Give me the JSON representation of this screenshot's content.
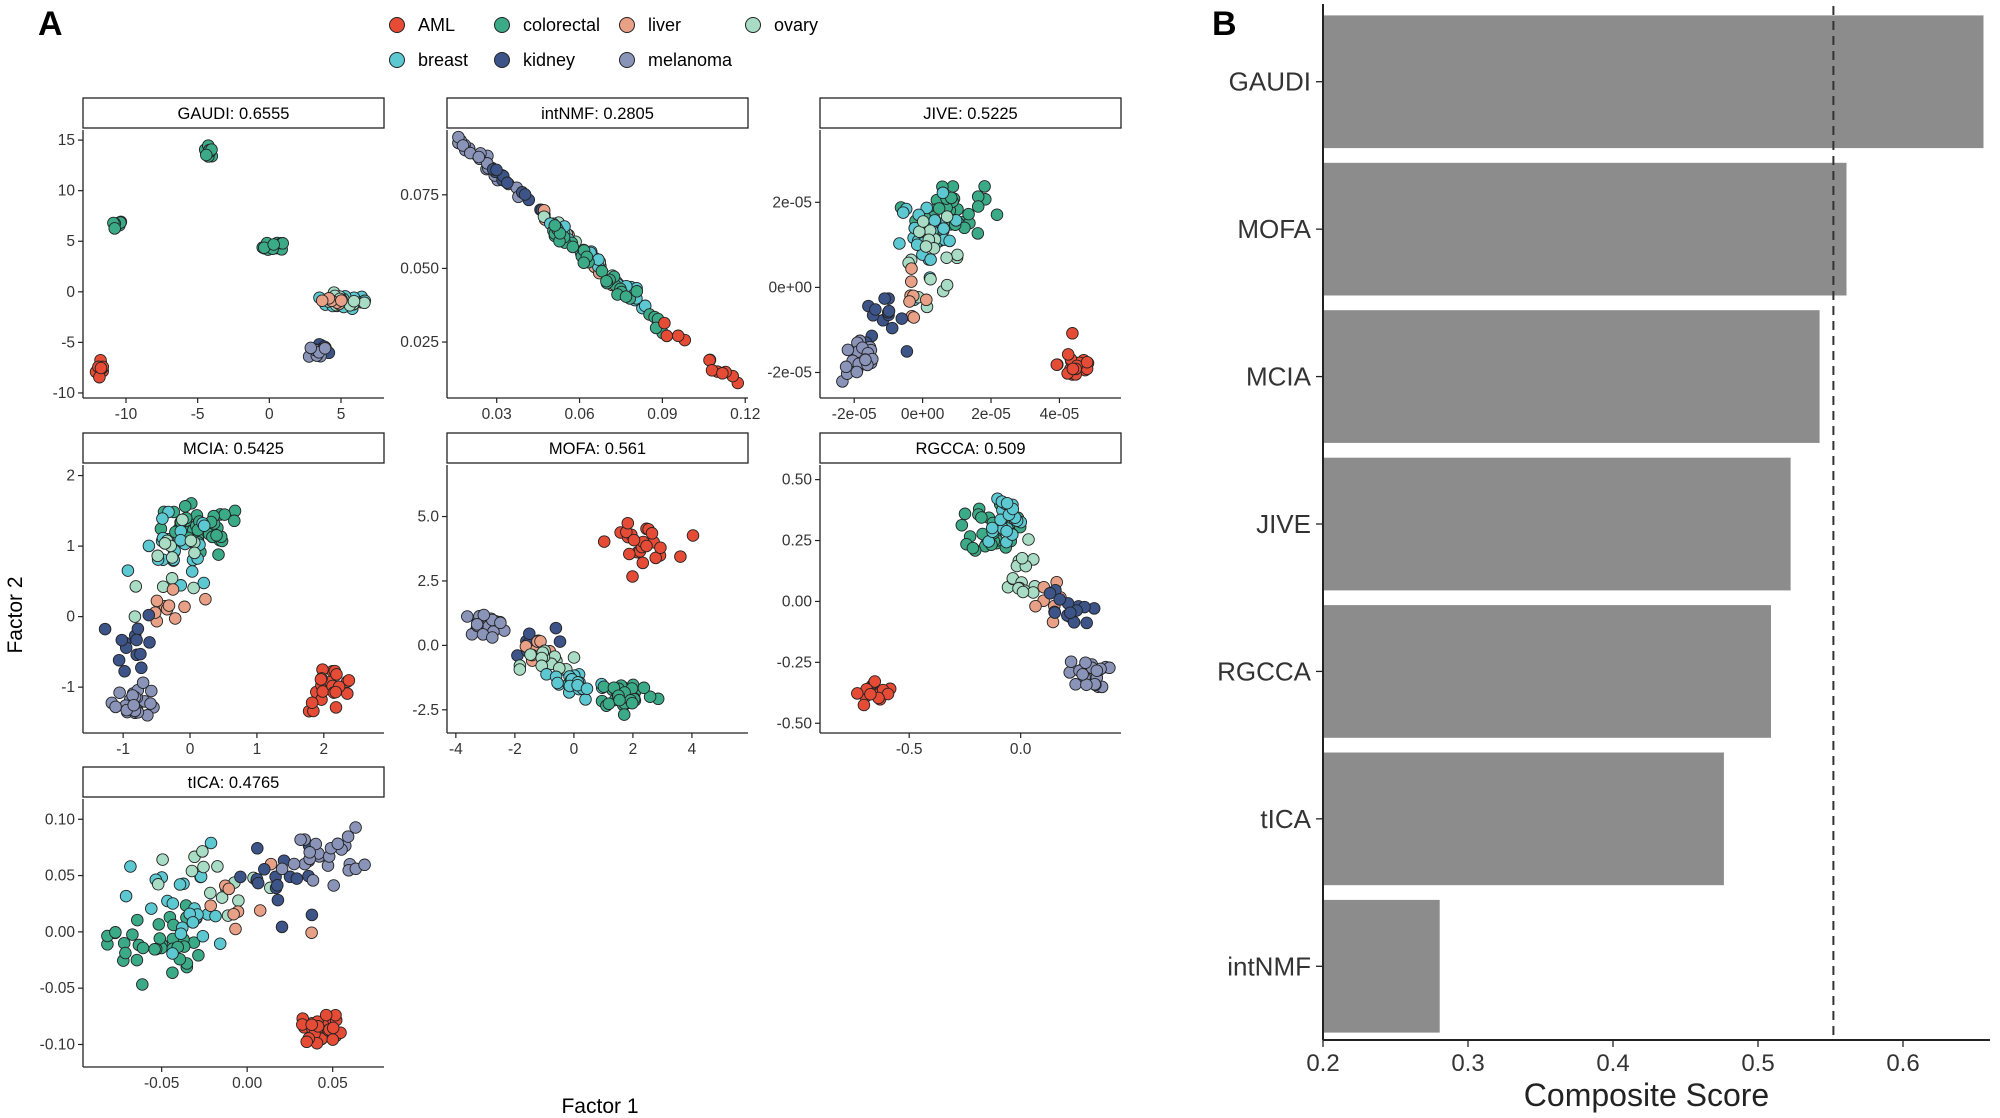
{
  "panel_a_letter": "A",
  "panel_b_letter": "B",
  "shared_xlabel": "Factor 1",
  "shared_ylabel": "Factor 2",
  "legend": [
    {
      "label": "AML",
      "color": "#E64B35"
    },
    {
      "label": "colorectal",
      "color": "#3BAA86"
    },
    {
      "label": "liver",
      "color": "#E8A086"
    },
    {
      "label": "ovary",
      "color": "#A8DCC4"
    },
    {
      "label": "breast",
      "color": "#5BC8D2"
    },
    {
      "label": "kidney",
      "color": "#3C5488"
    },
    {
      "label": "melanoma",
      "color": "#8A93B8"
    }
  ],
  "chart_data": [
    {
      "type": "scatter",
      "title": "GAUDI: 0.6555",
      "xticks": [
        "-10",
        "-5",
        "0",
        "5"
      ],
      "xtick_values": [
        -10,
        -5,
        0,
        5
      ],
      "yticks": [
        "-10",
        "-5",
        "0",
        "5",
        "10",
        "15"
      ],
      "ytick_values": [
        -10,
        -5,
        0,
        5,
        10,
        15
      ],
      "xlim": [
        -13,
        8
      ],
      "ylim": [
        -10.5,
        16
      ],
      "clusters": [
        {
          "group": "AML",
          "center": [
            -11.7,
            -7.6
          ],
          "spread": [
            0.35,
            1.1
          ],
          "n": 10
        },
        {
          "group": "colorectal",
          "center": [
            -10.7,
            6.7
          ],
          "spread": [
            0.5,
            0.3
          ],
          "n": 9
        },
        {
          "group": "colorectal",
          "center": [
            -4.2,
            13.9
          ],
          "spread": [
            0.3,
            0.5
          ],
          "n": 10
        },
        {
          "group": "colorectal",
          "center": [
            0.3,
            4.4
          ],
          "spread": [
            0.7,
            0.5
          ],
          "n": 16
        },
        {
          "group": "breast",
          "center": [
            5.2,
            -1.0
          ],
          "spread": [
            1.5,
            0.6
          ],
          "n": 26
        },
        {
          "group": "ovary",
          "center": [
            5.0,
            -0.9
          ],
          "spread": [
            1.4,
            0.6
          ],
          "n": 14
        },
        {
          "group": "liver",
          "center": [
            4.2,
            -1.1
          ],
          "spread": [
            1.0,
            0.5
          ],
          "n": 6
        },
        {
          "group": "kidney",
          "center": [
            3.8,
            -5.8
          ],
          "spread": [
            0.5,
            0.5
          ],
          "n": 12
        },
        {
          "group": "melanoma",
          "center": [
            3.4,
            -5.9
          ],
          "spread": [
            0.6,
            0.6
          ],
          "n": 10
        }
      ]
    },
    {
      "type": "scatter",
      "title": "intNMF: 0.2805",
      "xticks": [
        "0.03",
        "0.06",
        "0.09",
        "0.12"
      ],
      "xtick_values": [
        0.03,
        0.06,
        0.09,
        0.12
      ],
      "yticks": [
        "0.025",
        "0.050",
        "0.075"
      ],
      "ytick_values": [
        0.025,
        0.05,
        0.075
      ],
      "xlim": [
        0.012,
        0.121
      ],
      "ylim": [
        0.006,
        0.097
      ],
      "lines": [
        {
          "group": "melanoma",
          "from": [
            0.016,
            0.094
          ],
          "to": [
            0.04,
            0.074
          ],
          "n": 26,
          "spread": 0.0012
        },
        {
          "group": "kidney",
          "from": [
            0.025,
            0.086
          ],
          "to": [
            0.05,
            0.066
          ],
          "n": 12,
          "spread": 0.0012
        },
        {
          "group": "liver",
          "from": [
            0.035,
            0.079
          ],
          "to": [
            0.08,
            0.038
          ],
          "n": 10,
          "spread": 0.0012
        },
        {
          "group": "ovary",
          "from": [
            0.04,
            0.074
          ],
          "to": [
            0.075,
            0.045
          ],
          "n": 18,
          "spread": 0.0012
        },
        {
          "group": "breast",
          "from": [
            0.045,
            0.07
          ],
          "to": [
            0.085,
            0.036
          ],
          "n": 22,
          "spread": 0.0012
        },
        {
          "group": "colorectal",
          "from": [
            0.05,
            0.064
          ],
          "to": [
            0.092,
            0.028
          ],
          "n": 36,
          "spread": 0.0012
        },
        {
          "group": "AML",
          "from": [
            0.086,
            0.034
          ],
          "to": [
            0.118,
            0.011
          ],
          "n": 12,
          "spread": 0.0012
        }
      ]
    },
    {
      "type": "scatter",
      "title": "JIVE: 0.5225",
      "xticks": [
        "-2e-05",
        "0e+00",
        "2e-05",
        "4e-05"
      ],
      "xtick_values": [
        -2e-05,
        0,
        2e-05,
        4e-05
      ],
      "yticks": [
        "-2e-05",
        "0e+00",
        "2e-05"
      ],
      "ytick_values": [
        -2e-05,
        0,
        2e-05
      ],
      "xlim": [
        -3e-05,
        5.8e-05
      ],
      "ylim": [
        -2.6e-05,
        3.7e-05
      ],
      "clusters": [
        {
          "group": "colorectal",
          "center": [
            8e-06,
            1.8e-05
          ],
          "spread": [
            9e-06,
            6e-06
          ],
          "n": 40
        },
        {
          "group": "breast",
          "center": [
            2e-06,
            1.2e-05
          ],
          "spread": [
            8e-06,
            8e-06
          ],
          "n": 30
        },
        {
          "group": "ovary",
          "center": [
            3e-06,
            7e-06
          ],
          "spread": [
            8e-06,
            8e-06
          ],
          "n": 18
        },
        {
          "group": "liver",
          "center": [
            -4e-06,
            -2e-06
          ],
          "spread": [
            5e-06,
            5e-06
          ],
          "n": 8
        },
        {
          "group": "kidney",
          "center": [
            -1.2e-05,
            -8e-06
          ],
          "spread": [
            6e-06,
            5e-06
          ],
          "n": 14
        },
        {
          "group": "melanoma",
          "center": [
            -1.8e-05,
            -1.7e-05
          ],
          "spread": [
            5e-06,
            5e-06
          ],
          "n": 22
        },
        {
          "group": "AML",
          "center": [
            4.5e-05,
            -1.8e-05
          ],
          "spread": [
            5e-06,
            4e-06
          ],
          "n": 22
        }
      ]
    },
    {
      "type": "scatter",
      "title": "MCIA: 0.5425",
      "xticks": [
        "-1",
        "0",
        "1",
        "2"
      ],
      "xtick_values": [
        -1,
        0,
        1,
        2
      ],
      "yticks": [
        "-1",
        "0",
        "1",
        "2"
      ],
      "ytick_values": [
        -1,
        0,
        1,
        2
      ],
      "xlim": [
        -1.6,
        2.9
      ],
      "ylim": [
        -1.65,
        2.15
      ],
      "clusters": [
        {
          "group": "colorectal",
          "center": [
            0.1,
            1.2
          ],
          "spread": [
            0.65,
            0.35
          ],
          "n": 40
        },
        {
          "group": "breast",
          "center": [
            -0.2,
            0.9
          ],
          "spread": [
            0.5,
            0.5
          ],
          "n": 22
        },
        {
          "group": "ovary",
          "center": [
            -0.2,
            0.7
          ],
          "spread": [
            0.5,
            0.5
          ],
          "n": 14
        },
        {
          "group": "liver",
          "center": [
            -0.3,
            0.1
          ],
          "spread": [
            0.4,
            0.4
          ],
          "n": 10
        },
        {
          "group": "kidney",
          "center": [
            -0.8,
            -0.4
          ],
          "spread": [
            0.3,
            0.4
          ],
          "n": 14
        },
        {
          "group": "melanoma",
          "center": [
            -0.8,
            -1.2
          ],
          "spread": [
            0.3,
            0.2
          ],
          "n": 24
        },
        {
          "group": "AML",
          "center": [
            2.1,
            -1.0
          ],
          "spread": [
            0.35,
            0.3
          ],
          "n": 22
        }
      ]
    },
    {
      "type": "scatter",
      "title": "MOFA: 0.561",
      "xticks": [
        "-4",
        "-2",
        "0",
        "2",
        "4"
      ],
      "xtick_values": [
        -4,
        -2,
        0,
        2,
        4
      ],
      "yticks": [
        "-2.5",
        "0.0",
        "2.5",
        "5.0"
      ],
      "ytick_values": [
        -2.5,
        0,
        2.5,
        5
      ],
      "xlim": [
        -4.3,
        5.9
      ],
      "ylim": [
        -3.4,
        7.0
      ],
      "clusters": [
        {
          "group": "AML",
          "center": [
            2.3,
            4.0
          ],
          "spread": [
            1.0,
            0.6
          ],
          "n": 24
        },
        {
          "group": "melanoma",
          "center": [
            -3.0,
            0.8
          ],
          "spread": [
            0.7,
            0.4
          ],
          "n": 24
        },
        {
          "group": "kidney",
          "center": [
            -1.5,
            0.0
          ],
          "spread": [
            0.8,
            0.6
          ],
          "n": 14
        },
        {
          "group": "liver",
          "center": [
            -1.3,
            -0.3
          ],
          "spread": [
            0.6,
            0.5
          ],
          "n": 10
        },
        {
          "group": "ovary",
          "center": [
            -0.8,
            -0.8
          ],
          "spread": [
            0.9,
            0.7
          ],
          "n": 16
        },
        {
          "group": "breast",
          "center": [
            0.0,
            -1.5
          ],
          "spread": [
            1.0,
            0.6
          ],
          "n": 24
        },
        {
          "group": "colorectal",
          "center": [
            1.8,
            -1.9
          ],
          "spread": [
            0.9,
            0.5
          ],
          "n": 34
        }
      ]
    },
    {
      "type": "scatter",
      "title": "RGCCA: 0.509",
      "xticks": [
        "-0.5",
        "0.0"
      ],
      "xtick_values": [
        -0.5,
        0
      ],
      "yticks": [
        "-0.50",
        "-0.25",
        "0.00",
        "0.25",
        "0.50"
      ],
      "ytick_values": [
        -0.5,
        -0.25,
        0,
        0.25,
        0.5
      ],
      "xlim": [
        -0.9,
        0.45
      ],
      "ylim": [
        -0.54,
        0.56
      ],
      "clusters": [
        {
          "group": "AML",
          "center": [
            -0.65,
            -0.38
          ],
          "spread": [
            0.08,
            0.05
          ],
          "n": 22
        },
        {
          "group": "colorectal",
          "center": [
            -0.12,
            0.3
          ],
          "spread": [
            0.09,
            0.1
          ],
          "n": 36
        },
        {
          "group": "breast",
          "center": [
            -0.08,
            0.35
          ],
          "spread": [
            0.08,
            0.1
          ],
          "n": 22
        },
        {
          "group": "ovary",
          "center": [
            0.0,
            0.1
          ],
          "spread": [
            0.1,
            0.12
          ],
          "n": 16
        },
        {
          "group": "liver",
          "center": [
            0.1,
            0.0
          ],
          "spread": [
            0.07,
            0.08
          ],
          "n": 8
        },
        {
          "group": "kidney",
          "center": [
            0.2,
            -0.05
          ],
          "spread": [
            0.1,
            0.1
          ],
          "n": 14
        },
        {
          "group": "melanoma",
          "center": [
            0.3,
            -0.3
          ],
          "spread": [
            0.08,
            0.05
          ],
          "n": 26
        }
      ]
    },
    {
      "type": "scatter",
      "title": "tICA: 0.4765",
      "xticks": [
        "-0.05",
        "0.00",
        "0.05"
      ],
      "xtick_values": [
        -0.05,
        0,
        0.05
      ],
      "yticks": [
        "-0.10",
        "-0.05",
        "0.00",
        "0.05",
        "0.10"
      ],
      "ytick_values": [
        -0.1,
        -0.05,
        0,
        0.05,
        0.1
      ],
      "xlim": [
        -0.096,
        0.08
      ],
      "ylim": [
        -0.12,
        0.118
      ],
      "clusters": [
        {
          "group": "colorectal",
          "center": [
            -0.055,
            -0.01
          ],
          "spread": [
            0.025,
            0.03
          ],
          "n": 34
        },
        {
          "group": "breast",
          "center": [
            -0.035,
            0.02
          ],
          "spread": [
            0.03,
            0.05
          ],
          "n": 26
        },
        {
          "group": "ovary",
          "center": [
            -0.015,
            0.04
          ],
          "spread": [
            0.03,
            0.03
          ],
          "n": 14
        },
        {
          "group": "liver",
          "center": [
            0.0,
            0.02
          ],
          "spread": [
            0.03,
            0.04
          ],
          "n": 10
        },
        {
          "group": "kidney",
          "center": [
            0.02,
            0.04
          ],
          "spread": [
            0.03,
            0.04
          ],
          "n": 16
        },
        {
          "group": "melanoma",
          "center": [
            0.045,
            0.07
          ],
          "spread": [
            0.02,
            0.02
          ],
          "n": 26
        },
        {
          "group": "AML",
          "center": [
            0.045,
            -0.085
          ],
          "spread": [
            0.012,
            0.012
          ],
          "n": 28
        }
      ]
    },
    {
      "type": "bar",
      "orientation": "horizontal",
      "categories": [
        "GAUDI",
        "MOFA",
        "MCIA",
        "JIVE",
        "RGCCA",
        "tICA",
        "intNMF"
      ],
      "values": [
        0.6555,
        0.561,
        0.5425,
        0.5225,
        0.509,
        0.4765,
        0.2805
      ],
      "xlabel": "Composite Score",
      "xticks": [
        "0.2",
        "0.3",
        "0.4",
        "0.5",
        "0.6"
      ],
      "xtick_values": [
        0.2,
        0.3,
        0.4,
        0.5,
        0.6
      ],
      "xlim": [
        0.2,
        0.66
      ],
      "reference_line": 0.552,
      "bar_color": "#8C8C8C"
    }
  ]
}
